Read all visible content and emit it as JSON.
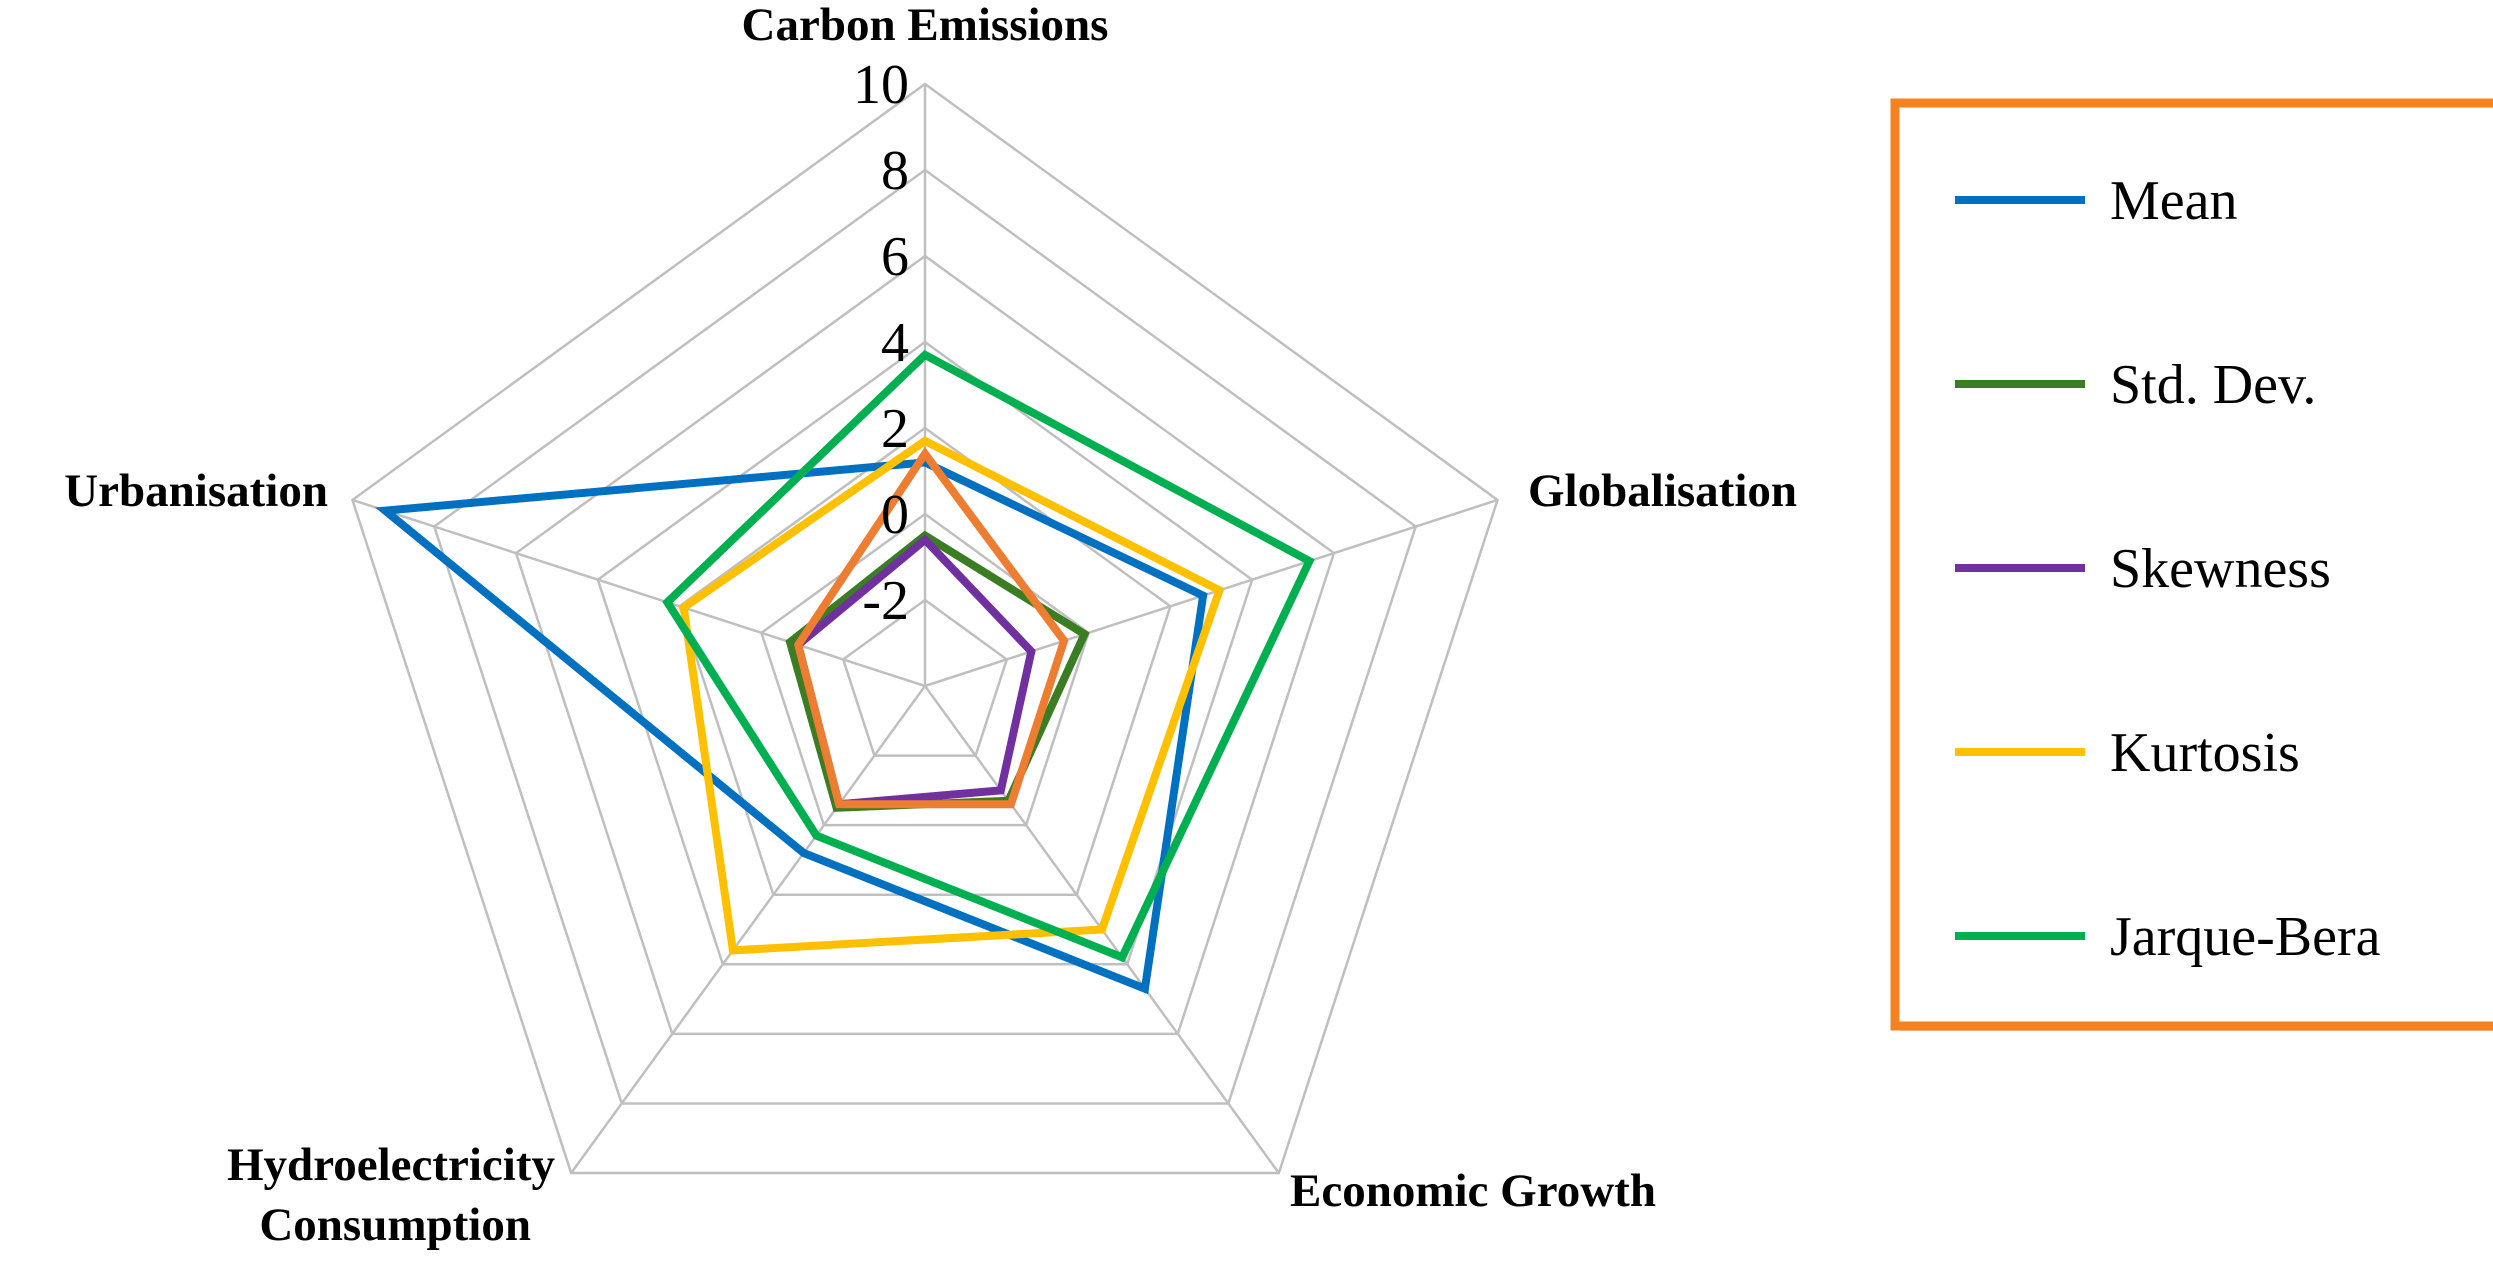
{
  "chart_data": {
    "type": "radar",
    "axes": [
      "Carbon Emissions",
      "Globalisation",
      "Economic Growth",
      "Hydroelectricity Consumption",
      "Urbanisation"
    ],
    "axis_label_lines": [
      [
        "Carbon Emissions"
      ],
      [
        "Globalisation"
      ],
      [
        "Economic Growth"
      ],
      [
        "Hydroelectricity",
        "Consumption"
      ],
      [
        "Urbanisation"
      ]
    ],
    "rlim": [
      -4,
      10
    ],
    "ticks": [
      -2,
      0,
      2,
      4,
      6,
      8,
      10
    ],
    "tick_labels": [
      "-2",
      "0",
      "2",
      "4",
      "6",
      "8",
      "10"
    ],
    "grid_color": "#bfbfbf",
    "series": [
      {
        "name": "Mean",
        "color": "#0070c0",
        "values": [
          1.2,
          2.8,
          4.7,
          0.8,
          9.2
        ]
      },
      {
        "name": "Std. Dev.",
        "color": "#3a7d22",
        "values": [
          -0.5,
          -0.1,
          -0.7,
          -0.5,
          -0.7
        ]
      },
      {
        "name": "Skewness",
        "color": "#7030a0",
        "values": [
          -0.6,
          -1.4,
          -1.0,
          -0.6,
          -0.9
        ]
      },
      {
        "name": "Kurtosis",
        "color": "#ffc000",
        "values": [
          1.7,
          3.2,
          3.0,
          3.6,
          1.9
        ]
      },
      {
        "name": "Jarque-Bera",
        "color": "#00b050",
        "values": [
          3.7,
          5.4,
          3.8,
          0.3,
          2.3
        ]
      },
      {
        "name": "",
        "color": "#ed7d31",
        "values": [
          1.4,
          -0.6,
          -0.6,
          -0.6,
          -0.9
        ]
      }
    ],
    "legend_position": "right",
    "legend_border_color": "#f58220"
  }
}
